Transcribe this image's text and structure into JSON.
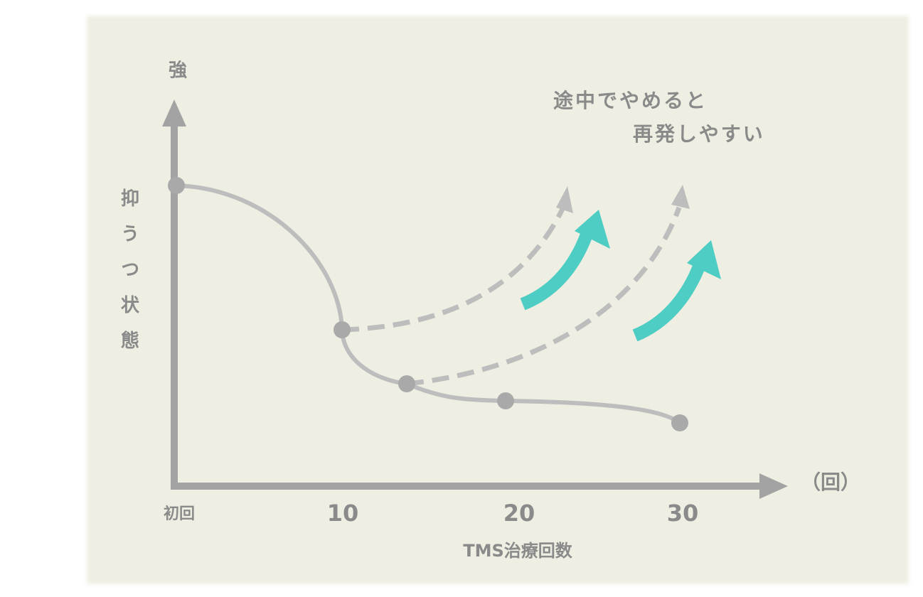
{
  "y_axis": {
    "top_label": "強",
    "label": "抑うつ状態"
  },
  "x_axis": {
    "unit": "（回）",
    "ticks": [
      "初回",
      "10",
      "20",
      "30"
    ],
    "label": "TMS治療回数"
  },
  "annotation": {
    "line1": "途中でやめると",
    "line2": "再発しやすい"
  }
}
